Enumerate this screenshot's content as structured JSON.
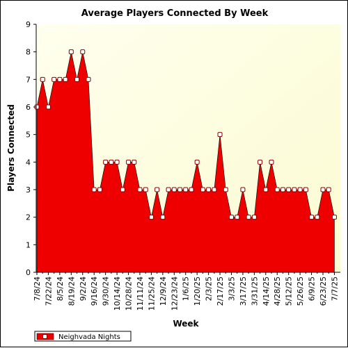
{
  "chart_data": {
    "type": "area",
    "title": "Average Players Connected By Week",
    "xlabel": "Week",
    "ylabel": "Players Connected",
    "ylim": [
      0,
      9
    ],
    "yticks": [
      "0",
      "1",
      "2",
      "3",
      "4",
      "5",
      "6",
      "7",
      "8",
      "9"
    ],
    "xtick_labels": [
      "7/8/24",
      "7/22/24",
      "8/5/24",
      "8/19/24",
      "9/2/24",
      "9/16/24",
      "9/30/24",
      "10/14/24",
      "10/28/24",
      "11/11/24",
      "11/25/24",
      "12/9/24",
      "12/23/24",
      "1/6/25",
      "1/20/25",
      "2/3/25",
      "2/17/25",
      "3/3/25",
      "3/17/25",
      "3/31/25",
      "4/14/25",
      "4/28/25",
      "5/12/25",
      "5/26/25",
      "6/9/25",
      "6/23/25",
      "7/7/25"
    ],
    "grid": false,
    "legend_position": "bottom-left",
    "colors": {
      "fill": "#ee0000",
      "plot_bg_light": "#ffffee",
      "plot_bg_dark": "#fbfbd2",
      "marker_face": "#ffffff",
      "marker_edge": "#8b0000"
    },
    "series": [
      {
        "name": "Neighvada Nights",
        "values": [
          6,
          7,
          6,
          7,
          7,
          7,
          8,
          7,
          8,
          7,
          3,
          3,
          4,
          4,
          4,
          3,
          4,
          4,
          3,
          3,
          2,
          3,
          2,
          3,
          3,
          3,
          3,
          3,
          4,
          3,
          3,
          3,
          5,
          3,
          2,
          2,
          3,
          2,
          2,
          4,
          3,
          4,
          3,
          3,
          3,
          3,
          3,
          3,
          2,
          2,
          3,
          3,
          2
        ]
      }
    ]
  }
}
